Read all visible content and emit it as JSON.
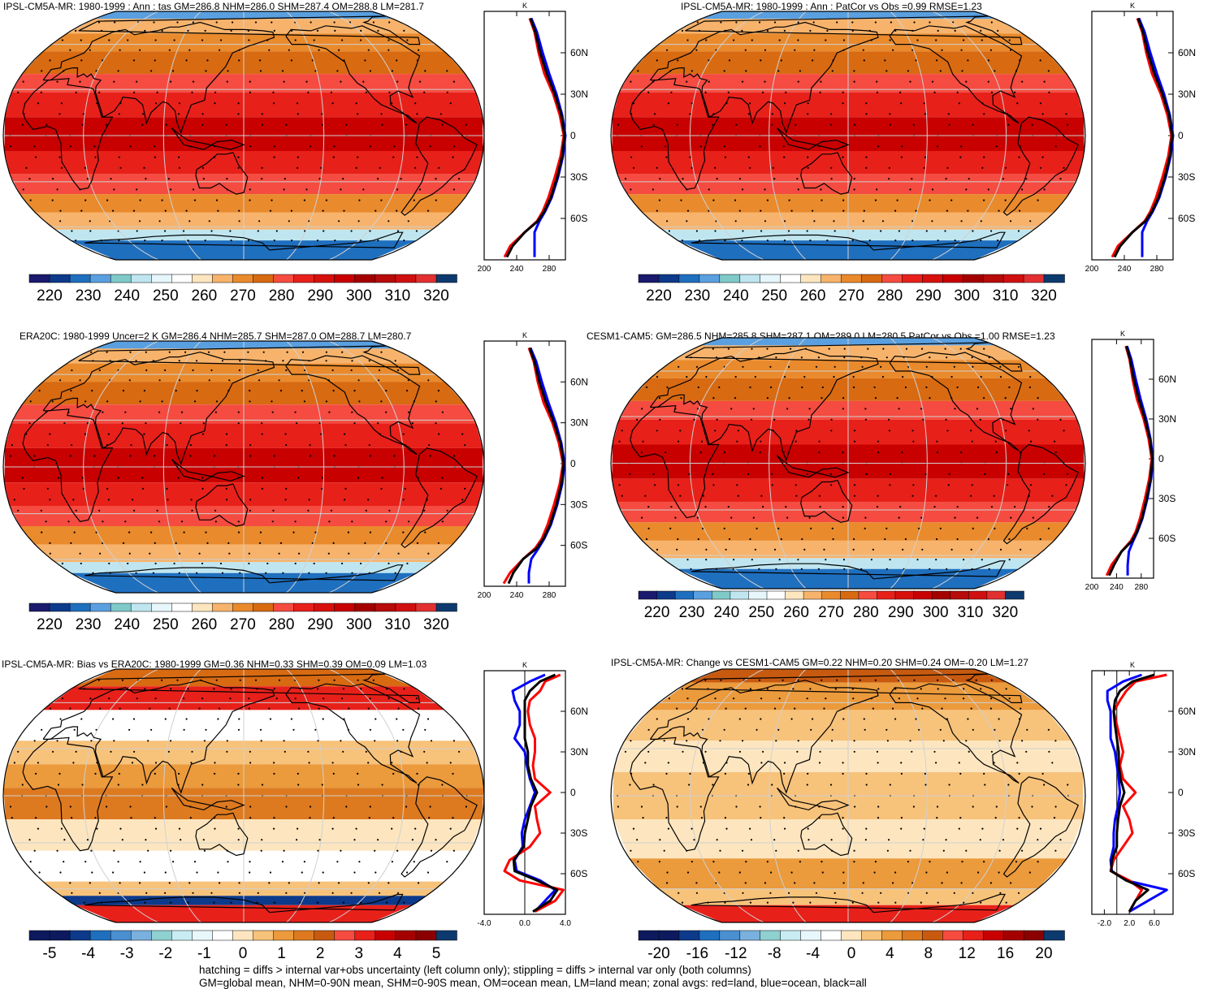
{
  "figure": {
    "footer_line1": "hatching = diffs > internal var+obs uncertainty (left column only); stippling = diffs > internal var only (both columns)",
    "footer_line2": "GM=global mean, NHM=0-90N mean, SHM=0-90S mean, OM=ocean mean, LM=land mean; zonal avgs: red=land, blue=ocean, black=all"
  },
  "colors": {
    "land": "#ff0000",
    "ocean": "#0000ff",
    "all": "#000000",
    "grid": "#d0d0d0",
    "abs_scale": [
      "#1a1a6e",
      "#0d3a8a",
      "#1f6fbf",
      "#5aa0e0",
      "#7fc9c9",
      "#bfe6f0",
      "#e6f6fb",
      "#ffffff",
      "#fde6bf",
      "#f7b36b",
      "#e98a2c",
      "#d86a12",
      "#f54b40",
      "#e8201a",
      "#d8100c",
      "#c80000",
      "#a50000",
      "#b80b0b",
      "#d01010",
      "#e23030",
      "#0d3a6e"
    ],
    "diff_scale": [
      "#0d1a5e",
      "#0d3a8a",
      "#1f6fbf",
      "#4a8fd0",
      "#7ab0de",
      "#8fd0d0",
      "#c8ecf2",
      "#e8f7fb",
      "#ffffff",
      "#fde6bf",
      "#f7c27a",
      "#eb9a3c",
      "#dd7a20",
      "#c85a10",
      "#f54b40",
      "#e8201a",
      "#c80000",
      "#a50000",
      "#8b0000",
      "#0d3a6e"
    ]
  },
  "chart_data": [
    {
      "type": "heatmap",
      "title": "IPSL-CM5A-MR: 1980-1999 : Ann : tas GM=286.8 NHM=286.0 SHM=287.4 OM=288.8 LM=281.7",
      "colorbar_ticks": [
        "220",
        "230",
        "240",
        "250",
        "260",
        "270",
        "280",
        "290",
        "300",
        "310",
        "320"
      ],
      "colorbar_range": [
        215,
        325
      ],
      "zonal": {
        "unit": "K",
        "x_ticks": [
          "200",
          "240",
          "280"
        ],
        "xlim": [
          200,
          300
        ],
        "lat_ticks": [
          "60N",
          "30N",
          "0",
          "30S",
          "60S"
        ],
        "series": [
          {
            "name": "land",
            "lat": [
              85,
              75,
              60,
              45,
              30,
              15,
              0,
              -15,
              -30,
              -45,
              -55,
              -62,
              -70,
              -80,
              -88
            ],
            "values": [
              256,
              262,
              267,
              274,
              285,
              293,
              298,
              294,
              287,
              279,
              272,
              265,
              250,
              232,
              225
            ]
          },
          {
            "name": "ocean",
            "lat": [
              85,
              75,
              60,
              45,
              30,
              15,
              0,
              -15,
              -30,
              -45,
              -55,
              -62,
              -70,
              -80,
              -88
            ],
            "values": [
              258,
              265,
              272,
              280,
              289,
              296,
              300,
              297,
              291,
              283,
              275,
              268,
              262,
              262,
              262
            ]
          },
          {
            "name": "all",
            "lat": [
              85,
              75,
              60,
              45,
              30,
              15,
              0,
              -15,
              -30,
              -45,
              -55,
              -62,
              -70,
              -80,
              -88
            ],
            "values": [
              257,
              263,
              269,
              277,
              287,
              295,
              299,
              296,
              290,
              282,
              274,
              266,
              250,
              235,
              228
            ]
          }
        ]
      }
    },
    {
      "type": "heatmap",
      "title": "IPSL-CM5A-MR: 1980-1999 : Ann : PatCor vs Obs =0.99 RMSE=1.23",
      "colorbar_ticks": [
        "220",
        "230",
        "240",
        "250",
        "260",
        "270",
        "280",
        "290",
        "300",
        "310",
        "320"
      ],
      "colorbar_range": [
        215,
        325
      ],
      "zonal": {
        "unit": "K",
        "x_ticks": [
          "200",
          "240",
          "280"
        ],
        "xlim": [
          200,
          300
        ],
        "lat_ticks": [
          "60N",
          "30N",
          "0",
          "30S",
          "60S"
        ],
        "series": [
          {
            "name": "land",
            "lat": [
              85,
              75,
              60,
              45,
              30,
              15,
              0,
              -15,
              -30,
              -45,
              -55,
              -62,
              -70,
              -80,
              -88
            ],
            "values": [
              256,
              262,
              267,
              274,
              285,
              293,
              298,
              294,
              287,
              279,
              272,
              265,
              250,
              232,
              225
            ]
          },
          {
            "name": "ocean",
            "lat": [
              85,
              75,
              60,
              45,
              30,
              15,
              0,
              -15,
              -30,
              -45,
              -55,
              -62,
              -70,
              -80,
              -88
            ],
            "values": [
              258,
              265,
              272,
              280,
              289,
              296,
              300,
              297,
              291,
              283,
              275,
              268,
              262,
              262,
              262
            ]
          },
          {
            "name": "all",
            "lat": [
              85,
              75,
              60,
              45,
              30,
              15,
              0,
              -15,
              -30,
              -45,
              -55,
              -62,
              -70,
              -80,
              -88
            ],
            "values": [
              257,
              263,
              269,
              277,
              287,
              295,
              299,
              296,
              290,
              282,
              274,
              266,
              250,
              235,
              228
            ]
          }
        ]
      }
    },
    {
      "type": "heatmap",
      "title": "ERA20C: 1980-1999 Uncer=2 K GM=286.4 NHM=285.7 SHM=287.0 OM=288.7 LM=280.7",
      "colorbar_ticks": [
        "220",
        "230",
        "240",
        "250",
        "260",
        "270",
        "280",
        "290",
        "300",
        "310",
        "320"
      ],
      "colorbar_range": [
        215,
        325
      ],
      "zonal": {
        "unit": "K",
        "x_ticks": [
          "200",
          "240",
          "280"
        ],
        "xlim": [
          200,
          300
        ],
        "lat_ticks": [
          "60N",
          "30N",
          "0",
          "30S",
          "60S"
        ],
        "series": [
          {
            "name": "land",
            "lat": [
              85,
              75,
              60,
              45,
              30,
              15,
              0,
              -15,
              -30,
              -45,
              -55,
              -62,
              -70,
              -80,
              -88
            ],
            "values": [
              255,
              261,
              266,
              273,
              284,
              292,
              297,
              293,
              286,
              278,
              271,
              263,
              248,
              232,
              224
            ]
          },
          {
            "name": "ocean",
            "lat": [
              85,
              75,
              60,
              45,
              30,
              15,
              0,
              -15,
              -30,
              -45,
              -55,
              -62,
              -70,
              -80,
              -88
            ],
            "values": [
              257,
              264,
              271,
              279,
              288,
              295,
              299,
              296,
              290,
              282,
              274,
              267,
              258,
              255,
              255
            ]
          },
          {
            "name": "all",
            "lat": [
              85,
              75,
              60,
              45,
              30,
              15,
              0,
              -15,
              -30,
              -45,
              -55,
              -62,
              -70,
              -80,
              -88
            ],
            "values": [
              256,
              262,
              268,
              276,
              286,
              294,
              298,
              295,
              289,
              281,
              273,
              265,
              248,
              236,
              230
            ]
          }
        ]
      }
    },
    {
      "type": "heatmap",
      "title": "CESM1-CAM5: GM=286.5 NHM=285.8 SHM=287.1 OM=289.0 LM=280.5 PatCor vs Obs =1.00 RMSE=1.23",
      "colorbar_ticks": [
        "220",
        "230",
        "240",
        "250",
        "260",
        "270",
        "280",
        "290",
        "300",
        "310",
        "320"
      ],
      "colorbar_range": [
        215,
        325
      ],
      "zonal": {
        "unit": "K",
        "x_ticks": [
          "200",
          "240",
          "280"
        ],
        "xlim": [
          200,
          300
        ],
        "lat_ticks": [
          "60N",
          "30N",
          "0",
          "30S",
          "60S"
        ],
        "series": [
          {
            "name": "land",
            "lat": [
              85,
              75,
              60,
              45,
              30,
              15,
              0,
              -15,
              -30,
              -45,
              -55,
              -62,
              -70,
              -80,
              -88
            ],
            "values": [
              255,
              261,
              266,
              273,
              284,
              292,
              297,
              293,
              286,
              278,
              271,
              263,
              248,
              232,
              224
            ]
          },
          {
            "name": "ocean",
            "lat": [
              85,
              75,
              60,
              45,
              30,
              15,
              0,
              -15,
              -30,
              -45,
              -55,
              -62,
              -70,
              -80,
              -88
            ],
            "values": [
              257,
              264,
              271,
              279,
              288,
              295,
              299,
              296,
              290,
              282,
              274,
              267,
              260,
              258,
              258
            ]
          },
          {
            "name": "all",
            "lat": [
              85,
              75,
              60,
              45,
              30,
              15,
              0,
              -15,
              -30,
              -45,
              -55,
              -62,
              -70,
              -80,
              -88
            ],
            "values": [
              256,
              262,
              268,
              276,
              286,
              294,
              298,
              295,
              289,
              281,
              273,
              265,
              248,
              236,
              228
            ]
          }
        ]
      }
    },
    {
      "type": "heatmap",
      "title": "IPSL-CM5A-MR: Bias vs ERA20C: 1980-1999 GM=0.36 NHM=0.33 SHM=0.39 OM=0.09 LM=1.03",
      "colorbar_ticks": [
        "-5",
        "-4",
        "-3",
        "-2",
        "-1",
        "0",
        "1",
        "2",
        "3",
        "4",
        "5"
      ],
      "colorbar_range": [
        -5.5,
        5.5
      ],
      "zonal": {
        "unit": "K",
        "x_ticks": [
          "-4.0",
          "0.0",
          "4.0"
        ],
        "xlim": [
          -4,
          4
        ],
        "lat_ticks": [
          "60N",
          "30N",
          "0",
          "30S",
          "60S"
        ],
        "series": [
          {
            "name": "land",
            "lat": [
              87,
              82,
              75,
              68,
              60,
              50,
              40,
              30,
              20,
              10,
              0,
              -10,
              -20,
              -30,
              -40,
              -50,
              -58,
              -65,
              -72,
              -80,
              -88
            ],
            "values": [
              3.5,
              2.0,
              1.5,
              0.5,
              0.3,
              0.5,
              1.0,
              1.0,
              0.8,
              1.0,
              2.5,
              1.0,
              1.2,
              1.5,
              0.5,
              -1.5,
              -2.0,
              -0.5,
              3.8,
              3.0,
              1.0
            ]
          },
          {
            "name": "ocean",
            "lat": [
              87,
              82,
              75,
              68,
              60,
              50,
              40,
              30,
              20,
              10,
              0,
              -10,
              -20,
              -30,
              -40,
              -50,
              -58,
              -65,
              -72,
              -80,
              -88
            ],
            "values": [
              2.0,
              0.5,
              -1.2,
              -1.0,
              -0.5,
              -0.5,
              -1.0,
              0.0,
              0.2,
              0.5,
              1.0,
              0.5,
              0.0,
              -0.3,
              -0.2,
              -1.0,
              -0.8,
              1.5,
              3.0,
              2.0,
              1.0
            ]
          },
          {
            "name": "all",
            "lat": [
              87,
              82,
              75,
              68,
              60,
              50,
              40,
              30,
              20,
              10,
              0,
              -10,
              -20,
              -30,
              -40,
              -50,
              -58,
              -65,
              -72,
              -80,
              -88
            ],
            "values": [
              3.0,
              1.5,
              0.5,
              0.0,
              0.0,
              0.0,
              0.0,
              0.3,
              0.3,
              0.6,
              1.2,
              0.6,
              0.3,
              0.0,
              -0.1,
              -1.1,
              -1.0,
              1.2,
              3.2,
              2.5,
              0.8
            ]
          }
        ]
      }
    },
    {
      "type": "heatmap",
      "title": "IPSL-CM5A-MR: Change vs CESM1-CAM5 GM=0.22 NHM=0.20 SHM=0.24 OM=-0.20 LM=1.27",
      "colorbar_ticks": [
        "-20",
        "-16",
        "-12",
        "-8",
        "-4",
        "0",
        "4",
        "8",
        "12",
        "16",
        "20"
      ],
      "colorbar_range": [
        -22,
        22
      ],
      "zonal": {
        "unit": "K",
        "x_ticks": [
          "-2.0",
          "2.0",
          "6.0"
        ],
        "xlim": [
          -4,
          9
        ],
        "lat_ticks": [
          "60N",
          "30N",
          "0",
          "30S",
          "60S"
        ],
        "series": [
          {
            "name": "land",
            "lat": [
              87,
              82,
              75,
              68,
              60,
              50,
              40,
              30,
              20,
              10,
              0,
              -10,
              -20,
              -30,
              -40,
              -50,
              -58,
              -65,
              -72,
              -80,
              -88
            ],
            "values": [
              8.0,
              3.0,
              1.5,
              0.5,
              -0.5,
              0.0,
              0.5,
              1.0,
              0.5,
              1.0,
              3.0,
              1.0,
              2.0,
              2.5,
              1.0,
              -0.5,
              -1.0,
              2.0,
              4.0,
              3.0,
              2.0
            ]
          },
          {
            "name": "ocean",
            "lat": [
              87,
              82,
              75,
              68,
              60,
              50,
              40,
              30,
              20,
              10,
              0,
              -10,
              -20,
              -30,
              -40,
              -50,
              -58,
              -65,
              -72,
              -80,
              -88
            ],
            "values": [
              4.0,
              1.0,
              -1.5,
              -1.5,
              -1.0,
              -1.0,
              -1.0,
              -0.3,
              0.0,
              0.3,
              0.5,
              0.2,
              -0.3,
              -0.5,
              -0.5,
              -1.0,
              -0.8,
              1.5,
              8.0,
              5.0,
              2.0
            ]
          },
          {
            "name": "all",
            "lat": [
              87,
              82,
              75,
              68,
              60,
              50,
              40,
              30,
              20,
              10,
              0,
              -10,
              -20,
              -30,
              -40,
              -50,
              -58,
              -65,
              -72,
              -80,
              -88
            ],
            "values": [
              6.0,
              2.5,
              0.5,
              -0.3,
              -0.5,
              -0.3,
              0.0,
              0.3,
              0.3,
              0.6,
              1.2,
              0.5,
              0.2,
              0.0,
              0.0,
              -0.8,
              -0.9,
              1.5,
              5.0,
              3.0,
              2.0
            ]
          }
        ]
      }
    }
  ]
}
